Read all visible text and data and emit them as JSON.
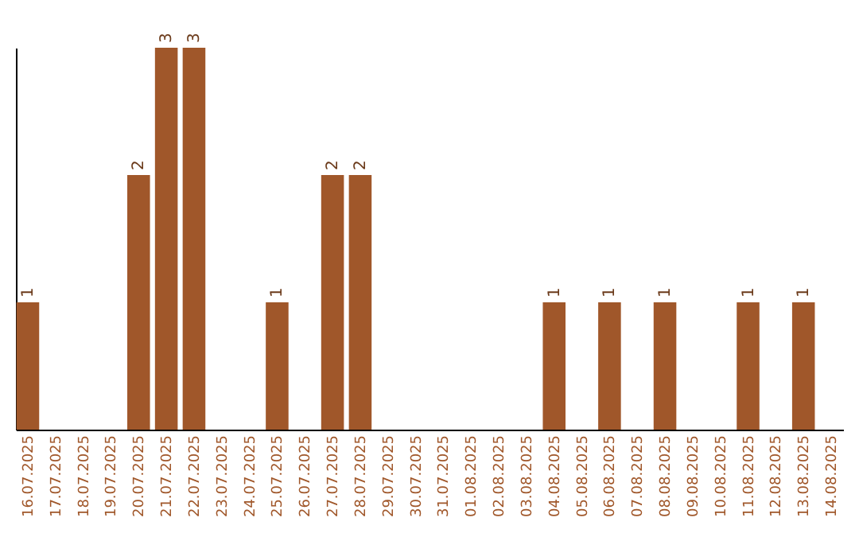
{
  "chart_data": {
    "type": "bar",
    "categories": [
      "16.07.2025",
      "17.07.2025",
      "18.07.2025",
      "19.07.2025",
      "20.07.2025",
      "21.07.2025",
      "22.07.2025",
      "23.07.2025",
      "24.07.2025",
      "25.07.2025",
      "26.07.2025",
      "27.07.2025",
      "28.07.2025",
      "29.07.2025",
      "30.07.2025",
      "31.07.2025",
      "01.08.2025",
      "02.08.2025",
      "03.08.2025",
      "04.08.2025",
      "05.08.2025",
      "06.08.2025",
      "07.08.2025",
      "08.08.2025",
      "09.08.2025",
      "10.08.2025",
      "11.08.2025",
      "12.08.2025",
      "13.08.2025",
      "14.08.2025"
    ],
    "values": [
      1,
      0,
      0,
      0,
      2,
      3,
      3,
      0,
      0,
      1,
      0,
      2,
      2,
      0,
      0,
      0,
      0,
      0,
      0,
      1,
      0,
      1,
      0,
      1,
      0,
      0,
      1,
      0,
      1,
      0
    ],
    "value_labels": [
      "1",
      null,
      null,
      null,
      "2",
      "3",
      "3",
      null,
      null,
      "1",
      null,
      "2",
      "2",
      null,
      null,
      null,
      null,
      null,
      null,
      "1",
      null,
      "1",
      null,
      "1",
      null,
      null,
      "1",
      null,
      "1",
      null
    ],
    "color": "#a0572a",
    "tick_labels": "x"
  }
}
